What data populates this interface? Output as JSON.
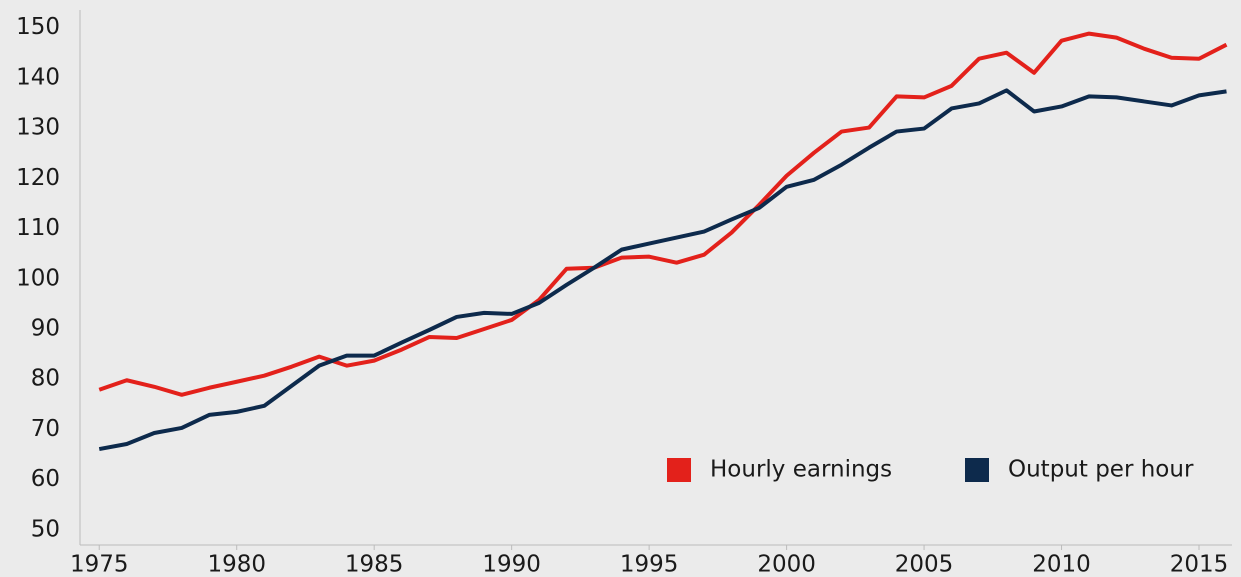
{
  "chart_data": {
    "type": "line",
    "x": [
      1975,
      1976,
      1977,
      1978,
      1979,
      1980,
      1981,
      1982,
      1983,
      1984,
      1985,
      1986,
      1987,
      1988,
      1989,
      1990,
      1991,
      1992,
      1993,
      1994,
      1995,
      1996,
      1997,
      1998,
      1999,
      2000,
      2001,
      2002,
      2003,
      2004,
      2005,
      2006,
      2007,
      2008,
      2009,
      2010,
      2011,
      2012,
      2013,
      2014,
      2015,
      2016
    ],
    "series": [
      {
        "name": "Hourly earnings",
        "color": "#e3211b",
        "values": [
          77.9,
          79.8,
          78.5,
          76.9,
          78.3,
          79.5,
          80.7,
          82.5,
          84.5,
          82.7,
          83.7,
          85.9,
          88.4,
          88.2,
          90.0,
          91.8,
          95.8,
          102.0,
          102.2,
          104.2,
          104.4,
          103.2,
          104.8,
          109.2,
          114.7,
          120.5,
          125.1,
          129.3,
          130.1,
          136.3,
          136.1,
          138.4,
          143.8,
          145.0,
          141.0,
          147.4,
          148.8,
          148.0,
          145.8,
          144.0,
          143.8,
          146.6
        ]
      },
      {
        "name": "Output per hour",
        "color": "#0d2a4c",
        "values": [
          66.1,
          67.1,
          69.3,
          70.3,
          72.9,
          73.5,
          74.7,
          78.7,
          82.7,
          84.7,
          84.7,
          87.3,
          89.8,
          92.4,
          93.2,
          93.0,
          95.2,
          98.8,
          102.2,
          105.8,
          107.0,
          108.2,
          109.4,
          111.8,
          114.1,
          118.3,
          119.7,
          122.7,
          126.1,
          129.3,
          129.9,
          133.9,
          134.9,
          137.5,
          133.3,
          134.3,
          136.3,
          136.1,
          135.3,
          134.5,
          136.5,
          137.3
        ]
      }
    ],
    "xlim": [
      1974.3,
      2016.2
    ],
    "xticks": [
      1975,
      1980,
      1985,
      1990,
      1995,
      2000,
      2005,
      2010,
      2015
    ],
    "ylim": [
      47,
      153.5
    ],
    "yticks": [
      50,
      60,
      70,
      80,
      90,
      100,
      110,
      120,
      130,
      140,
      150
    ],
    "legend": "lower right"
  }
}
